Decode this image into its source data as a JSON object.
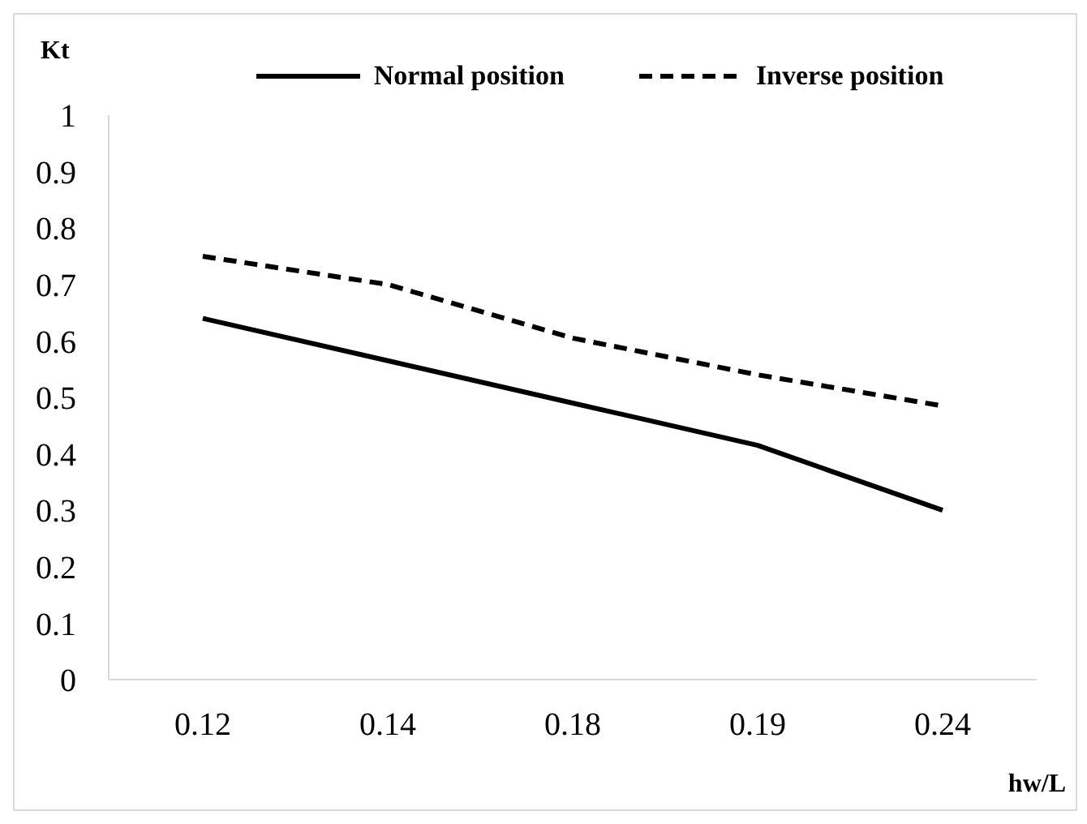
{
  "chart_data": {
    "type": "line",
    "xlabel": "hw/L",
    "ylabel": "Kt",
    "categories": [
      "0.12",
      "0.14",
      "0.18",
      "0.19",
      "0.24"
    ],
    "series": [
      {
        "name": "Normal position",
        "color": "#000000",
        "line_style": "solid",
        "values": [
          0.64,
          0.565,
          0.49,
          0.415,
          0.3
        ]
      },
      {
        "name": "Inverse position",
        "color": "#000000",
        "line_style": "dashed",
        "values": [
          0.75,
          0.7,
          0.605,
          0.54,
          0.485
        ]
      }
    ],
    "ylim": [
      0,
      1
    ],
    "yticks": [
      0,
      0.1,
      0.2,
      0.3,
      0.4,
      0.5,
      0.6,
      0.7,
      0.8,
      0.9,
      1
    ],
    "grid": false,
    "legend": "top",
    "marker": "none"
  }
}
